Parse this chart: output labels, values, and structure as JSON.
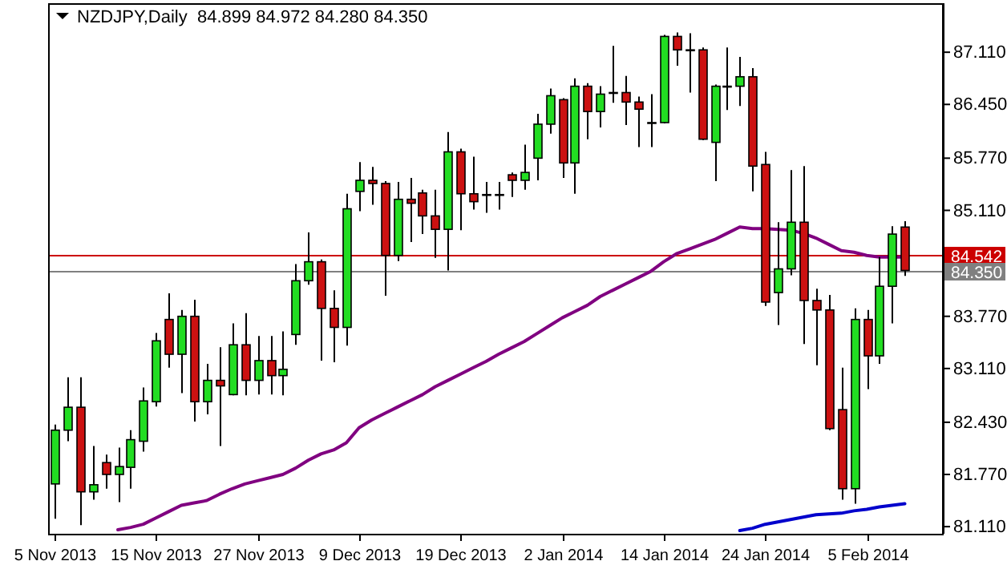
{
  "chart_data": {
    "type": "candlestick",
    "title": "NZDJPY,Daily  84.899 84.972 84.280 84.350",
    "categories": [
      "5 Nov 2013",
      null,
      null,
      null,
      null,
      null,
      null,
      null,
      "15 Nov 2013",
      null,
      null,
      null,
      null,
      null,
      null,
      null,
      "27 Nov 2013",
      null,
      null,
      null,
      null,
      null,
      null,
      null,
      "9 Dec 2013",
      null,
      null,
      null,
      null,
      null,
      null,
      null,
      "19 Dec 2013",
      null,
      null,
      null,
      null,
      null,
      null,
      null,
      "2 Jan 2014",
      null,
      null,
      null,
      null,
      null,
      null,
      null,
      "14 Jan 2014",
      null,
      null,
      null,
      null,
      null,
      null,
      null,
      "24 Jan 2014",
      null,
      null,
      null,
      null,
      null,
      null,
      null,
      "5 Feb 2014",
      null,
      null,
      null
    ],
    "series": [
      {
        "type": "candlestick",
        "ohlc": [
          [
            81.65,
            82.4,
            81.21,
            82.33
          ],
          [
            82.33,
            83.0,
            82.19,
            82.62
          ],
          [
            82.62,
            83.0,
            81.13,
            81.55
          ],
          [
            81.55,
            82.13,
            81.45,
            81.64
          ],
          [
            81.92,
            82.02,
            81.59,
            81.77
          ],
          [
            81.77,
            82.11,
            81.42,
            81.87
          ],
          [
            81.86,
            82.33,
            81.59,
            82.21
          ],
          [
            82.19,
            82.87,
            82.06,
            82.7
          ],
          [
            82.69,
            83.56,
            82.63,
            83.46
          ],
          [
            83.73,
            84.06,
            83.12,
            83.29
          ],
          [
            83.29,
            83.85,
            82.8,
            83.77
          ],
          [
            83.77,
            83.98,
            82.44,
            82.69
          ],
          [
            82.69,
            83.17,
            82.53,
            82.96
          ],
          [
            82.96,
            83.38,
            82.13,
            82.89
          ],
          [
            82.78,
            83.68,
            82.77,
            83.41
          ],
          [
            83.41,
            83.81,
            82.77,
            82.96
          ],
          [
            82.96,
            83.52,
            82.78,
            83.21
          ],
          [
            83.21,
            83.52,
            82.78,
            83.02
          ],
          [
            83.02,
            83.58,
            82.77,
            83.1
          ],
          [
            83.54,
            84.43,
            83.41,
            84.22
          ],
          [
            84.22,
            84.83,
            84.17,
            84.46
          ],
          [
            84.46,
            84.49,
            83.21,
            83.87
          ],
          [
            83.87,
            84.1,
            83.19,
            83.63
          ],
          [
            83.63,
            85.32,
            83.4,
            85.13
          ],
          [
            85.35,
            85.72,
            85.1,
            85.49
          ],
          [
            85.49,
            85.66,
            85.18,
            85.45
          ],
          [
            85.45,
            85.48,
            84.03,
            84.54
          ],
          [
            84.54,
            85.47,
            84.47,
            85.25
          ],
          [
            85.25,
            85.52,
            84.71,
            85.2
          ],
          [
            85.33,
            85.37,
            84.81,
            85.04
          ],
          [
            85.04,
            85.37,
            84.51,
            84.87
          ],
          [
            84.87,
            86.1,
            84.35,
            85.85
          ],
          [
            85.85,
            85.89,
            84.86,
            85.32
          ],
          [
            85.32,
            85.79,
            85.12,
            85.22
          ],
          [
            85.31,
            85.47,
            85.08,
            85.31
          ],
          [
            85.31,
            85.47,
            85.12,
            85.31
          ],
          [
            85.56,
            85.59,
            85.28,
            85.49
          ],
          [
            85.49,
            85.94,
            85.37,
            85.59
          ],
          [
            85.77,
            86.33,
            85.49,
            86.2
          ],
          [
            86.2,
            86.65,
            86.08,
            86.56
          ],
          [
            86.51,
            86.53,
            85.52,
            85.71
          ],
          [
            85.71,
            86.78,
            85.32,
            86.68
          ],
          [
            86.68,
            86.72,
            86.01,
            86.36
          ],
          [
            86.36,
            86.68,
            86.16,
            86.58
          ],
          [
            86.6,
            87.19,
            86.47,
            86.6
          ],
          [
            86.6,
            86.81,
            86.19,
            86.48
          ],
          [
            86.48,
            86.55,
            85.91,
            86.39
          ],
          [
            86.22,
            86.58,
            85.91,
            86.22
          ],
          [
            86.22,
            87.33,
            86.21,
            87.31
          ],
          [
            87.31,
            87.36,
            86.94,
            87.14
          ],
          [
            87.14,
            87.35,
            86.6,
            87.14
          ],
          [
            87.14,
            87.17,
            86.0,
            86.01
          ],
          [
            85.97,
            86.7,
            85.48,
            86.68
          ],
          [
            86.68,
            87.17,
            86.38,
            86.68
          ],
          [
            86.68,
            87.05,
            86.43,
            86.8
          ],
          [
            86.8,
            86.91,
            85.35,
            85.67
          ],
          [
            85.69,
            85.85,
            83.9,
            83.95
          ],
          [
            84.07,
            84.96,
            83.66,
            84.37
          ],
          [
            84.37,
            85.62,
            84.29,
            84.96
          ],
          [
            84.96,
            85.67,
            83.42,
            83.97
          ],
          [
            83.97,
            84.12,
            83.15,
            83.85
          ],
          [
            83.85,
            84.04,
            82.33,
            82.35
          ],
          [
            82.59,
            83.12,
            81.45,
            81.59
          ],
          [
            81.59,
            83.87,
            81.4,
            83.73
          ],
          [
            83.73,
            83.85,
            82.85,
            83.27
          ],
          [
            83.27,
            84.52,
            83.17,
            84.15
          ],
          [
            84.15,
            84.91,
            83.68,
            84.81
          ],
          [
            84.899,
            84.972,
            84.28,
            84.35
          ]
        ],
        "colors": [
          "#22dd22",
          "#22dd22",
          "#cc1111",
          "#22dd22",
          "#cc1111",
          "#22dd22",
          "#22dd22",
          "#22dd22",
          "#22dd22",
          "#cc1111",
          "#22dd22",
          "#cc1111",
          "#22dd22",
          "#cc1111",
          "#22dd22",
          "#cc1111",
          "#22dd22",
          "#cc1111",
          "#22dd22",
          "#22dd22",
          "#22dd22",
          "#cc1111",
          "#cc1111",
          "#22dd22",
          "#22dd22",
          "#cc1111",
          "#cc1111",
          "#22dd22",
          "#cc1111",
          "#cc1111",
          "#cc1111",
          "#22dd22",
          "#cc1111",
          "#cc1111",
          "#22dd22",
          "#22dd22",
          "#cc1111",
          "#22dd22",
          "#22dd22",
          "#22dd22",
          "#cc1111",
          "#22dd22",
          "#cc1111",
          "#22dd22",
          "#22dd22",
          "#cc1111",
          "#cc1111",
          "#22dd22",
          "#22dd22",
          "#cc1111",
          "#22dd22",
          "#cc1111",
          "#22dd22",
          "#22dd22",
          "#22dd22",
          "#cc1111",
          "#cc1111",
          "#22dd22",
          "#22dd22",
          "#cc1111",
          "#cc1111",
          "#cc1111",
          "#cc1111",
          "#22dd22",
          "#cc1111",
          "#22dd22",
          "#22dd22",
          "#cc1111"
        ]
      },
      {
        "type": "line",
        "color": "#800080",
        "values": [
          null,
          null,
          null,
          null,
          null,
          81.07,
          81.1,
          81.14,
          81.22,
          81.3,
          81.38,
          81.41,
          81.44,
          81.52,
          81.59,
          81.65,
          81.69,
          81.73,
          81.77,
          81.85,
          81.95,
          82.03,
          82.08,
          82.17,
          82.36,
          82.46,
          82.54,
          82.62,
          82.7,
          82.78,
          82.88,
          82.96,
          83.04,
          83.12,
          83.2,
          83.29,
          83.37,
          83.45,
          83.55,
          83.65,
          83.75,
          83.83,
          83.91,
          84.02,
          84.1,
          84.18,
          84.26,
          84.34,
          84.46,
          84.56,
          84.62,
          84.68,
          84.74,
          84.82,
          84.9,
          84.88,
          84.88,
          84.87,
          84.86,
          84.82,
          84.76,
          84.68,
          84.6,
          84.58,
          84.54,
          84.52,
          84.52,
          84.52
        ]
      },
      {
        "type": "line",
        "color": "#0000cc",
        "values": [
          null,
          null,
          null,
          null,
          null,
          null,
          null,
          null,
          null,
          null,
          null,
          null,
          null,
          null,
          null,
          null,
          null,
          null,
          null,
          null,
          null,
          null,
          null,
          null,
          null,
          null,
          null,
          null,
          null,
          null,
          null,
          null,
          null,
          null,
          null,
          null,
          null,
          null,
          null,
          null,
          null,
          null,
          null,
          null,
          null,
          null,
          null,
          null,
          null,
          null,
          null,
          null,
          null,
          null,
          81.06,
          81.09,
          81.14,
          81.17,
          81.2,
          81.23,
          81.26,
          81.27,
          81.28,
          81.31,
          81.33,
          81.36,
          81.38,
          81.4
        ]
      }
    ],
    "ylim": [
      81.02,
      87.73
    ],
    "yticks": [
      {
        "value": 87.11,
        "label": "87.110"
      },
      {
        "value": 86.45,
        "label": "86.450"
      },
      {
        "value": 85.77,
        "label": "85.770"
      },
      {
        "value": 85.11,
        "label": "85.110"
      },
      {
        "value": 83.77,
        "label": "83.770"
      },
      {
        "value": 83.11,
        "label": "83.110"
      },
      {
        "value": 82.43,
        "label": "82.430"
      },
      {
        "value": 81.77,
        "label": "81.770"
      },
      {
        "value": 81.11,
        "label": "81.110"
      }
    ],
    "ref_lines": [
      {
        "axis": "y",
        "value": 84.542,
        "label": "84.542",
        "color": "#cc0000"
      },
      {
        "axis": "y",
        "value": 84.35,
        "label": "84.350",
        "color": "#808080"
      }
    ]
  }
}
